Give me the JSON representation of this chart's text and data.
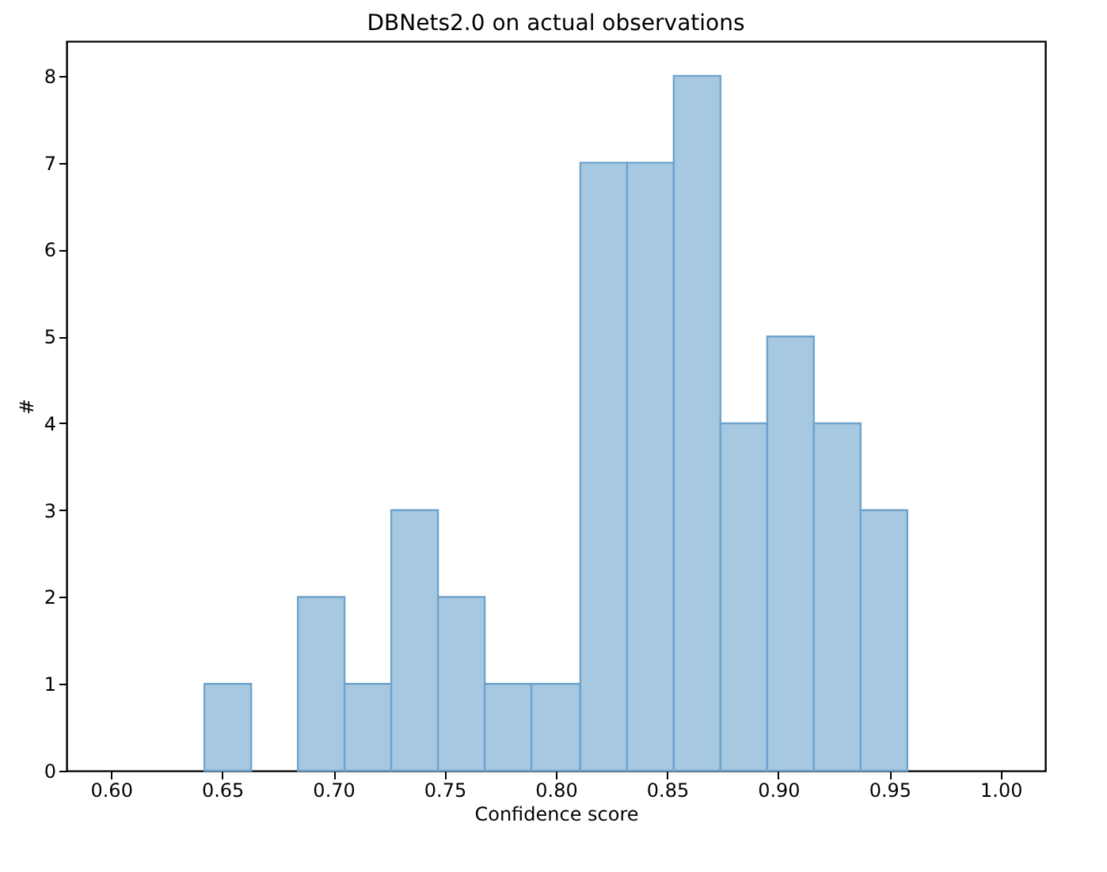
{
  "chart_data": {
    "type": "histogram",
    "title": "DBNets2.0 on actual observations",
    "xlabel": "Confidence score",
    "ylabel": "#",
    "bins": [
      0.642,
      0.663,
      0.684,
      0.705,
      0.726,
      0.747,
      0.768,
      0.789,
      0.811,
      0.832,
      0.853,
      0.874,
      0.895,
      0.916,
      0.937,
      0.958
    ],
    "values": [
      1,
      0,
      2,
      1,
      3,
      2,
      1,
      1,
      7,
      7,
      8,
      4,
      5,
      4,
      3
    ],
    "color": "#a6c8e0",
    "xlim": [
      0.58,
      1.02
    ],
    "xticks": [
      {
        "value": 0.6,
        "label": "0.60"
      },
      {
        "value": 0.65,
        "label": "0.65"
      },
      {
        "value": 0.7,
        "label": "0.70"
      },
      {
        "value": 0.75,
        "label": "0.75"
      },
      {
        "value": 0.8,
        "label": "0.80"
      },
      {
        "value": 0.85,
        "label": "0.85"
      },
      {
        "value": 0.9,
        "label": "0.90"
      },
      {
        "value": 0.95,
        "label": "0.95"
      },
      {
        "value": 1.0,
        "label": "1.00"
      }
    ],
    "ylim": [
      0,
      8.4
    ],
    "yticks": [
      0,
      1,
      2,
      3,
      4,
      5,
      6,
      7,
      8
    ],
    "grid": false
  }
}
